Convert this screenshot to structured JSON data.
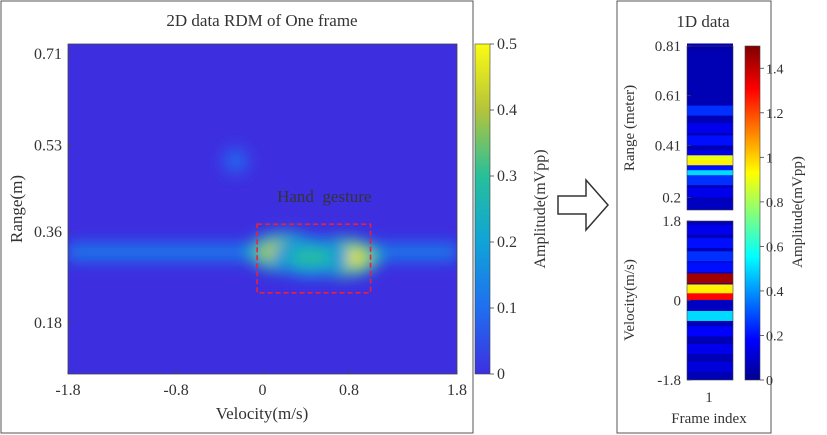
{
  "chart_data": [
    {
      "type": "heatmap",
      "title": "2D data RDM of One frame",
      "xlabel": "Velocity(m/s)",
      "ylabel": "Range(m)",
      "xlim": [
        -1.8,
        1.8
      ],
      "ylim": [
        0.08,
        0.73
      ],
      "x_ticks": [
        -1.8,
        -0.8,
        0,
        0.8,
        1.8
      ],
      "x_tick_labels": [
        "-1.8",
        "-0.8",
        "0",
        "0.8",
        "1.8"
      ],
      "y_ticks": [
        0.18,
        0.36,
        0.53,
        0.71
      ],
      "y_tick_labels": [
        "0.18",
        "0.36",
        "0.53",
        "0.71"
      ],
      "background_amplitude": 0.03,
      "peaks": [
        {
          "velocity": 0.2,
          "range": 0.32,
          "amplitude": 0.45
        },
        {
          "velocity": 0.75,
          "range": 0.31,
          "amplitude": 0.5
        },
        {
          "velocity": 0.45,
          "range": 0.31,
          "amplitude": 0.3
        },
        {
          "velocity": -0.25,
          "range": 0.5,
          "amplitude": 0.1
        }
      ],
      "clutter_band_range": 0.32,
      "annotation": {
        "text": "Hand  gesture",
        "box_velocity": [
          -0.05,
          1.0
        ],
        "box_range": [
          0.24,
          0.375
        ],
        "color": "#e8223a"
      },
      "colorbar": {
        "label": "Amplitude(mVpp)",
        "range": [
          0,
          0.5
        ],
        "ticks": [
          0,
          0.1,
          0.2,
          0.3,
          0.4,
          0.5
        ],
        "tick_labels": [
          "0",
          "0.1",
          "0.2",
          "0.3",
          "0.4",
          "0.5"
        ],
        "colormap": "parula"
      },
      "grid": false
    },
    {
      "type": "heatmap",
      "title": "1D data",
      "xlabel": "Frame index",
      "x_tick_labels": [
        "1"
      ],
      "subplots": [
        {
          "ylabel": "Range (meter)",
          "ylim": [
            0.15,
            0.81
          ],
          "y_ticks": [
            0.2,
            0.41,
            0.61,
            0.81
          ],
          "y_tick_labels": [
            "0.2",
            "0.41",
            "0.61",
            "0.81"
          ],
          "bins": [
            {
              "range": 0.8,
              "amplitude": 0.05
            },
            {
              "range": 0.55,
              "amplitude": 0.25
            },
            {
              "range": 0.48,
              "amplitude": 0.15
            },
            {
              "range": 0.43,
              "amplitude": 0.2
            },
            {
              "range": 0.37,
              "amplitude": 0.15
            },
            {
              "range": 0.35,
              "amplitude": 0.9
            },
            {
              "range": 0.33,
              "amplitude": 0.95
            },
            {
              "range": 0.31,
              "amplitude": 0.2
            },
            {
              "range": 0.29,
              "amplitude": 0.5
            },
            {
              "range": 0.27,
              "amplitude": 0.25
            },
            {
              "range": 0.22,
              "amplitude": 0.15
            },
            {
              "range": 0.17,
              "amplitude": 0.08
            }
          ]
        },
        {
          "ylabel": "Velocity(m/s)",
          "ylim": [
            -1.8,
            1.8
          ],
          "y_ticks": [
            -1.8,
            0,
            1.8
          ],
          "y_tick_labels": [
            "-1.8",
            "0",
            "1.8"
          ],
          "bins": [
            {
              "velocity": 1.6,
              "amplitude": 0.15
            },
            {
              "velocity": 1.3,
              "amplitude": 0.2
            },
            {
              "velocity": 1.0,
              "amplitude": 0.25
            },
            {
              "velocity": 0.75,
              "amplitude": 0.2
            },
            {
              "velocity": 0.5,
              "amplitude": 1.45
            },
            {
              "velocity": 0.25,
              "amplitude": 0.95
            },
            {
              "velocity": 0.05,
              "amplitude": 1.3
            },
            {
              "velocity": -0.1,
              "amplitude": 0.08
            },
            {
              "velocity": -0.35,
              "amplitude": 0.5
            },
            {
              "velocity": -0.7,
              "amplitude": 0.18
            },
            {
              "velocity": -1.1,
              "amplitude": 0.15
            },
            {
              "velocity": -1.5,
              "amplitude": 0.12
            }
          ]
        }
      ],
      "colorbar": {
        "label": "Amplitude(mVpp)",
        "range": [
          0,
          1.5
        ],
        "ticks": [
          0,
          0.2,
          0.4,
          0.6,
          0.8,
          1,
          1.2,
          1.4
        ],
        "tick_labels": [
          "0",
          "0.2",
          "0.4",
          "0.6",
          "0.8",
          "1",
          "1.2",
          "1.4"
        ],
        "colormap": "jet"
      }
    }
  ]
}
